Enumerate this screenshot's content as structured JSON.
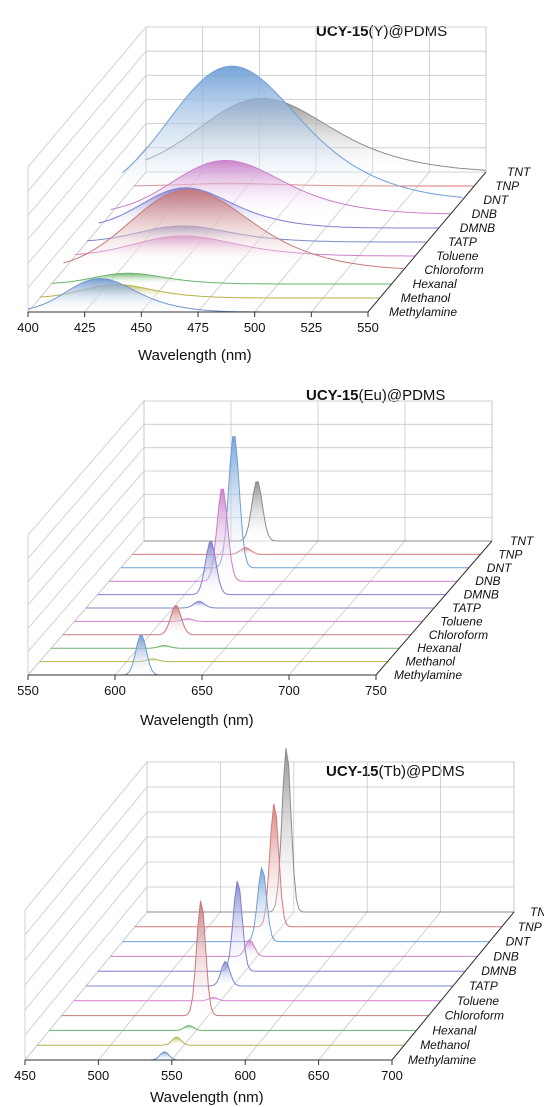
{
  "chart_data": [
    {
      "type": "area",
      "title_bold": "UCY-15",
      "title_rest": "(Y)@PDMS",
      "xlabel": "Wavelength (nm)",
      "xlim": [
        400,
        550
      ],
      "xticks": [
        "400",
        "425",
        "450",
        "475",
        "500",
        "525",
        "550"
      ],
      "categories": [
        "Methylamine",
        "Methanol",
        "Hexanal",
        "Chloroform",
        "Toluene",
        "TATP",
        "DMNB",
        "DNB",
        "DNT",
        "TNP",
        "TNT"
      ],
      "colors": [
        "#6f97cf",
        "#b7b24a",
        "#6ab26a",
        "#c6797b",
        "#cf7fcf",
        "#7b87c9",
        "#7f7fcf",
        "#c97fc9",
        "#6f9fd6",
        "#d57a7a",
        "#8c8c8c"
      ],
      "peaks": [
        {
          "center": 430,
          "width": 14,
          "height": 0.25
        },
        {
          "center": 432,
          "width": 14,
          "height": 0.1
        },
        {
          "center": 432,
          "width": 14,
          "height": 0.08
        },
        {
          "center": 452,
          "width": 24,
          "height": 0.6
        },
        {
          "center": 445,
          "width": 20,
          "height": 0.15
        },
        {
          "center": 440,
          "width": 18,
          "height": 0.12
        },
        {
          "center": 436,
          "width": 18,
          "height": 0.3
        },
        {
          "center": 448,
          "width": 22,
          "height": 0.4
        },
        {
          "center": 445,
          "width": 26,
          "height": 1.0
        },
        {
          "center": 440,
          "width": 18,
          "height": 0.02
        },
        {
          "center": 448,
          "width": 26,
          "height": 0.55
        }
      ]
    },
    {
      "type": "area",
      "title_bold": "UCY-15",
      "title_rest": "(Eu)@PDMS",
      "xlabel": "Wavelength (nm)",
      "xlim": [
        550,
        750
      ],
      "xticks": [
        "550",
        "600",
        "650",
        "700",
        "750"
      ],
      "categories": [
        "Methylamine",
        "Methanol",
        "Hexanal",
        "Chloroform",
        "Toluene",
        "TATP",
        "DMNB",
        "DNB",
        "DNT",
        "TNP",
        "TNT"
      ],
      "colors": [
        "#6f97cf",
        "#b7b24a",
        "#6ab26a",
        "#c6797b",
        "#cf7fcf",
        "#7b87c9",
        "#7f7fcf",
        "#c97fc9",
        "#6f9fd6",
        "#d57a7a",
        "#8c8c8c"
      ],
      "peaks": [
        {
          "center": 615,
          "width": 3,
          "height": 0.3
        },
        {
          "center": 615,
          "width": 3,
          "height": 0.02
        },
        {
          "center": 615,
          "width": 3,
          "height": 0.02
        },
        {
          "center": 615,
          "width": 3,
          "height": 0.22
        },
        {
          "center": 615,
          "width": 3,
          "height": 0.02
        },
        {
          "center": 615,
          "width": 3,
          "height": 0.05
        },
        {
          "center": 615,
          "width": 3,
          "height": 0.4
        },
        {
          "center": 615,
          "width": 3,
          "height": 0.7
        },
        {
          "center": 615,
          "width": 3,
          "height": 1.0
        },
        {
          "center": 615,
          "width": 3,
          "height": 0.05
        },
        {
          "center": 615,
          "width": 3,
          "height": 0.45
        }
      ]
    },
    {
      "type": "area",
      "title_bold": "UCY-15",
      "title_rest": "(Tb)@PDMS",
      "xlabel": "Wavelength (nm)",
      "xlim": [
        450,
        700
      ],
      "xticks": [
        "450",
        "500",
        "550",
        "600",
        "650",
        "700"
      ],
      "categories": [
        "Methylamine",
        "Methanol",
        "Hexanal",
        "Chloroform",
        "Toluene",
        "TATP",
        "DMNB",
        "DNB",
        "DNT",
        "TNP",
        "TNT"
      ],
      "colors": [
        "#6f97cf",
        "#b7b24a",
        "#6ab26a",
        "#c6797b",
        "#cf7fcf",
        "#7b87c9",
        "#7f7fcf",
        "#c97fc9",
        "#6f9fd6",
        "#d57a7a",
        "#8c8c8c"
      ],
      "peaks": [
        {
          "center": 545,
          "width": 3,
          "height": 0.05
        },
        {
          "center": 545,
          "width": 3,
          "height": 0.05
        },
        {
          "center": 545,
          "width": 3,
          "height": 0.03
        },
        {
          "center": 545,
          "width": 3,
          "height": 0.7
        },
        {
          "center": 545,
          "width": 3,
          "height": 0.02
        },
        {
          "center": 545,
          "width": 3,
          "height": 0.15
        },
        {
          "center": 545,
          "width": 3,
          "height": 0.55
        },
        {
          "center": 545,
          "width": 3,
          "height": 0.1
        },
        {
          "center": 545,
          "width": 3,
          "height": 0.45
        },
        {
          "center": 545,
          "width": 3,
          "height": 0.75
        },
        {
          "center": 545,
          "width": 3,
          "height": 1.0
        }
      ]
    }
  ]
}
